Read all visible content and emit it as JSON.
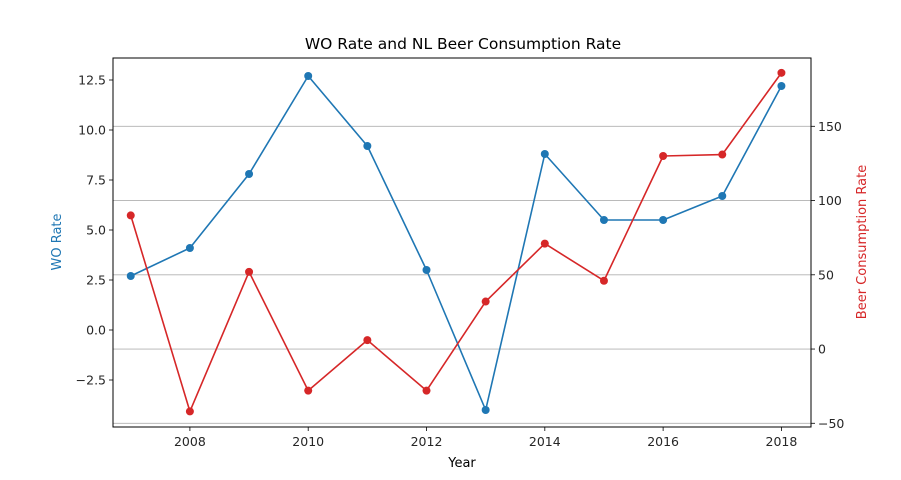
{
  "chart_data": {
    "type": "line",
    "title": "WO Rate and NL Beer Consumption Rate",
    "xlabel": "Year",
    "x": [
      2007,
      2008,
      2009,
      2010,
      2011,
      2012,
      2013,
      2014,
      2015,
      2016,
      2017,
      2018
    ],
    "xlim": [
      2006.7,
      2018.5
    ],
    "xticks": [
      2008,
      2010,
      2012,
      2014,
      2016,
      2018
    ],
    "grid": "horizontal grid lines from right axis",
    "left_axis": {
      "label": "WO Rate",
      "color": "#1f77b4",
      "ylim": [
        -4.85,
        13.6
      ],
      "ticks": [
        -2.5,
        0.0,
        2.5,
        5.0,
        7.5,
        10.0,
        12.5
      ],
      "tick_labels": [
        "−2.5",
        "0.0",
        "2.5",
        "5.0",
        "7.5",
        "10.0",
        "12.5"
      ]
    },
    "right_axis": {
      "label": "Beer Consumption Rate",
      "color": "#d62728",
      "ylim": [
        -52.5,
        196
      ],
      "ticks": [
        -50,
        0,
        50,
        100,
        150
      ],
      "tick_labels": [
        "−50",
        "0",
        "50",
        "100",
        "150"
      ]
    },
    "series": [
      {
        "axis": "left",
        "color": "#1f77b4",
        "values": [
          2.7,
          4.1,
          7.8,
          12.7,
          9.2,
          3.0,
          -4.0,
          8.8,
          5.5,
          5.5,
          6.7,
          12.2
        ]
      },
      {
        "axis": "right",
        "color": "#d62728",
        "values": [
          90,
          -42,
          52,
          -28,
          6,
          -28,
          32,
          71,
          46,
          130,
          131,
          186
        ]
      }
    ]
  }
}
